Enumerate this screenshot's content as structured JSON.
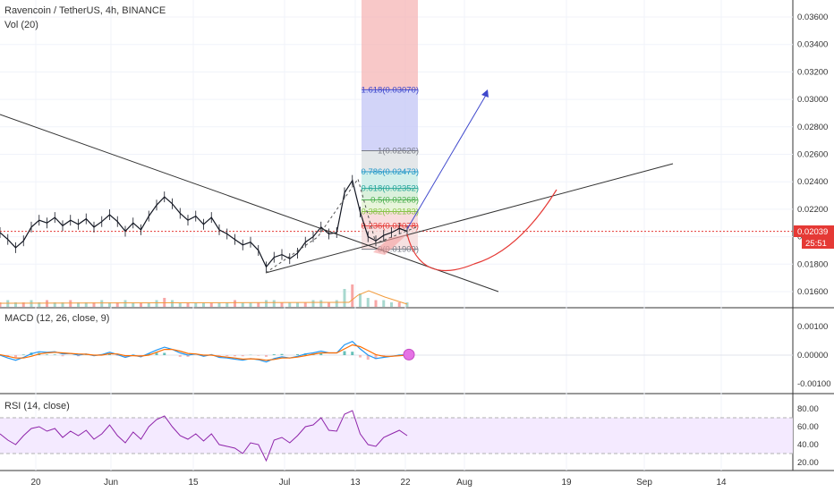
{
  "header": {
    "symbol_title": "Ravencoin / TetherUS, 4h, BINANCE",
    "volume_label": "Vol (20)"
  },
  "price_axis": {
    "ticks": [
      "0.03600",
      "0.03400",
      "0.03200",
      "0.03000",
      "0.02800",
      "0.02600",
      "0.02400",
      "0.02200",
      "0.02000",
      "0.01800",
      "0.01600"
    ],
    "current_price": "0.02039",
    "countdown": "25:51",
    "current_color": "#e53935"
  },
  "time_axis": {
    "ticks": [
      "20",
      "Jun",
      "15",
      "Jul",
      "13",
      "22",
      "Aug",
      "19",
      "Sep",
      "14"
    ]
  },
  "macd": {
    "label": "MACD (12, 26, close, 9)",
    "ticks": [
      "0.00100",
      "0.00000",
      "-0.00100"
    ]
  },
  "rsi": {
    "label": "RSI (14, close)",
    "ticks": [
      "80.00",
      "60.00",
      "40.00",
      "20.00"
    ]
  },
  "fib_levels": [
    {
      "label": "1.618(0.03070)",
      "color": "#3f48cc"
    },
    {
      "label": "1(0.02626)",
      "color": "#787b86"
    },
    {
      "label": "0.786(0.02473)",
      "color": "#2196c8"
    },
    {
      "label": "0.618(0.02352)",
      "color": "#26a69a"
    },
    {
      "label": "0.5(0.02268)",
      "color": "#4caf50"
    },
    {
      "label": "0.382(0.02183)",
      "color": "#8bc34a"
    },
    {
      "label": "0.236(0.02078)",
      "color": "#e53935"
    },
    {
      "label": "0(0.01909)",
      "color": "#787b86"
    }
  ],
  "chart_data": {
    "type": "line",
    "title": "Ravencoin / TetherUS, 4h, BINANCE",
    "ylim": [
      0.0155,
      0.0368
    ],
    "y_ticks": [
      0.036,
      0.034,
      0.032,
      0.03,
      0.028,
      0.026,
      0.024,
      0.022,
      0.02,
      0.018,
      0.016
    ],
    "x_ticks": [
      "20",
      "Jun",
      "15",
      "Jul",
      "13",
      "22",
      "Aug",
      "19",
      "Sep",
      "14"
    ],
    "series": [
      {
        "values": [
          0.0203,
          0.0198,
          0.0192,
          0.0197,
          0.0207,
          0.0212,
          0.021,
          0.0214,
          0.0208,
          0.0212,
          0.0209,
          0.0213,
          0.0207,
          0.0211,
          0.0216,
          0.0211,
          0.0204,
          0.021,
          0.0205,
          0.0215,
          0.0223,
          0.0229,
          0.0224,
          0.0217,
          0.0212,
          0.0215,
          0.0209,
          0.0214,
          0.0205,
          0.0202,
          0.0198,
          0.0194,
          0.0196,
          0.019,
          0.0178,
          0.0185,
          0.0187,
          0.0184,
          0.0188,
          0.0196,
          0.02,
          0.0207,
          0.0202,
          0.0203,
          0.0232,
          0.0241,
          0.0218,
          0.02,
          0.0197,
          0.0201,
          0.0203,
          0.0206,
          0.0204
        ]
      }
    ],
    "volume": [
      0.2,
      0.3,
      0.2,
      0.2,
      0.3,
      0.2,
      0.3,
      0.2,
      0.2,
      0.3,
      0.2,
      0.2,
      0.2,
      0.3,
      0.2,
      0.2,
      0.3,
      0.2,
      0.2,
      0.2,
      0.3,
      0.4,
      0.3,
      0.2,
      0.2,
      0.2,
      0.2,
      0.2,
      0.2,
      0.2,
      0.3,
      0.2,
      0.2,
      0.2,
      0.3,
      0.3,
      0.2,
      0.2,
      0.2,
      0.2,
      0.3,
      0.3,
      0.2,
      0.3,
      0.8,
      1.0,
      0.6,
      0.4,
      0.3,
      0.3,
      0.2,
      0.2,
      0.2
    ],
    "macd": [
      0.0,
      -0.0001,
      -0.00018,
      -8e-05,
      5e-05,
      0.00012,
      0.0001,
      0.00012,
      4e-05,
      6e-05,
      0.0,
      4e-05,
      -2e-05,
      2e-05,
      0.0001,
      2e-05,
      -8e-05,
      0.0,
      -6e-05,
      6e-05,
      0.00018,
      0.00028,
      0.0002,
      8e-05,
      0.0,
      4e-05,
      -4e-05,
      2e-05,
      -8e-05,
      -0.0001,
      -0.00014,
      -0.00018,
      -0.00012,
      -0.00016,
      -0.00024,
      -0.00012,
      -6e-05,
      -0.0001,
      -4e-05,
      4e-05,
      8e-05,
      0.00014,
      8e-05,
      8e-05,
      0.00036,
      0.00048,
      0.00022,
      0.0,
      -0.00012,
      -8e-05,
      -4e-05,
      0.0,
      2e-05
    ],
    "macd_signal": [
      2e-05,
      -4e-05,
      -0.0001,
      -0.0001,
      -4e-05,
      4e-05,
      8e-05,
      0.0001,
      8e-05,
      6e-05,
      4e-05,
      3e-05,
      0.0,
      0.0,
      5e-05,
      4e-05,
      -2e-05,
      -2e-05,
      -3e-05,
      0.0,
      0.0001,
      0.0002,
      0.0002,
      0.00014,
      6e-05,
      4e-05,
      0.0,
      0.0,
      -4e-05,
      -7e-05,
      -0.0001,
      -0.00014,
      -0.00013,
      -0.00014,
      -0.00018,
      -0.00015,
      -0.0001,
      -0.0001,
      -7e-05,
      -2e-05,
      3e-05,
      8e-05,
      8e-05,
      8e-05,
      0.00022,
      0.00036,
      0.0003,
      0.00016,
      2e-05,
      -4e-05,
      -4e-05,
      -2e-05,
      0.0
    ],
    "rsi": [
      52,
      45,
      40,
      50,
      58,
      60,
      55,
      58,
      48,
      55,
      50,
      56,
      46,
      52,
      62,
      50,
      42,
      54,
      46,
      60,
      68,
      72,
      60,
      50,
      46,
      52,
      44,
      52,
      40,
      38,
      36,
      30,
      42,
      40,
      22,
      45,
      48,
      42,
      50,
      60,
      62,
      70,
      56,
      55,
      74,
      78,
      52,
      40,
      38,
      48,
      52,
      56,
      50
    ]
  }
}
